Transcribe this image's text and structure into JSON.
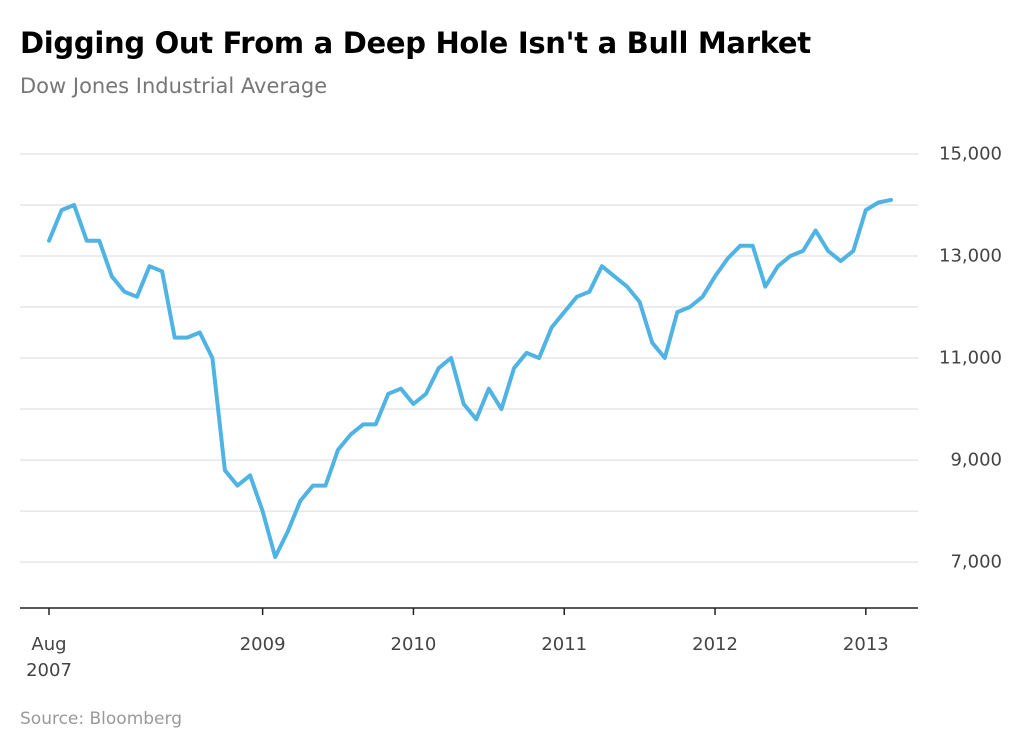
{
  "chart_data": {
    "type": "line",
    "title": "Digging Out From a Deep Hole Isn't a Bull Market",
    "subtitle": "Dow Jones Industrial Average",
    "source": "Source: Bloomberg",
    "color": "#4fb3e3",
    "x": [
      "2007-08",
      "2007-09",
      "2007-10",
      "2007-11",
      "2007-12",
      "2008-01",
      "2008-02",
      "2008-03",
      "2008-04",
      "2008-05",
      "2008-06",
      "2008-07",
      "2008-08",
      "2008-09",
      "2008-10",
      "2008-11",
      "2008-12",
      "2009-01",
      "2009-02",
      "2009-03",
      "2009-04",
      "2009-05",
      "2009-06",
      "2009-07",
      "2009-08",
      "2009-09",
      "2009-10",
      "2009-11",
      "2009-12",
      "2010-01",
      "2010-02",
      "2010-03",
      "2010-04",
      "2010-05",
      "2010-06",
      "2010-07",
      "2010-08",
      "2010-09",
      "2010-10",
      "2010-11",
      "2010-12",
      "2011-01",
      "2011-02",
      "2011-03",
      "2011-04",
      "2011-05",
      "2011-06",
      "2011-07",
      "2011-08",
      "2011-09",
      "2011-10",
      "2011-11",
      "2011-12",
      "2012-01",
      "2012-02",
      "2012-03",
      "2012-04",
      "2012-05",
      "2012-06",
      "2012-07",
      "2012-08",
      "2012-09",
      "2012-10",
      "2012-11",
      "2012-12",
      "2013-01",
      "2013-02",
      "2013-03"
    ],
    "values": [
      13300,
      13900,
      14000,
      13300,
      13300,
      12600,
      12300,
      12200,
      12800,
      12700,
      11400,
      11400,
      11500,
      11000,
      8800,
      8500,
      8700,
      8000,
      7100,
      7600,
      8200,
      8500,
      8500,
      9200,
      9500,
      9700,
      9700,
      10300,
      10400,
      10100,
      10300,
      10800,
      11000,
      10100,
      9800,
      10400,
      10000,
      10800,
      11100,
      11000,
      11600,
      11900,
      12200,
      12300,
      12800,
      12600,
      12400,
      12100,
      11300,
      11000,
      11900,
      12000,
      12200,
      12600,
      12950,
      13200,
      13200,
      12400,
      12800,
      13000,
      13100,
      13500,
      13100,
      12900,
      13100,
      13900,
      14050,
      14100
    ],
    "xticks": [
      {
        "value": "2007-08",
        "label": "Aug 2007"
      },
      {
        "value": "2009-01",
        "label": "2009"
      },
      {
        "value": "2010-01",
        "label": "2010"
      },
      {
        "value": "2011-01",
        "label": "2011"
      },
      {
        "value": "2012-01",
        "label": "2012"
      },
      {
        "value": "2013-01",
        "label": "2013"
      }
    ],
    "ylim": [
      6100,
      15000
    ],
    "yticks": [
      {
        "value": 7000,
        "label": "7,000"
      },
      {
        "value": 9000,
        "label": "9,000"
      },
      {
        "value": 11000,
        "label": "11,000"
      },
      {
        "value": 13000,
        "label": "13,000"
      },
      {
        "value": 15000,
        "label": "15,000"
      }
    ],
    "yminor": [
      8000,
      10000,
      12000,
      14000
    ],
    "grid": true
  }
}
